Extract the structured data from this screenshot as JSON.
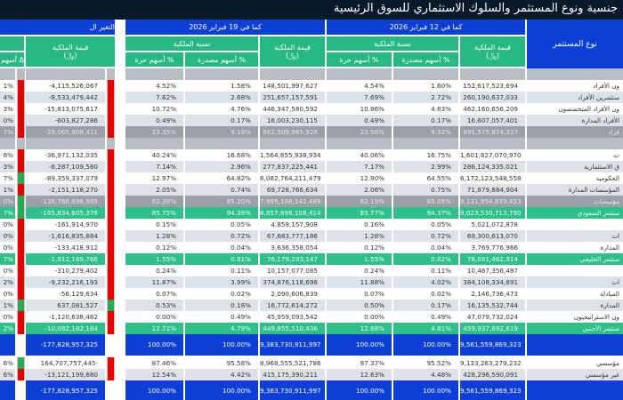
{
  "title": "جنسية ونوع المستثمر والسلوك الاستثماري للسوق الرئيسية",
  "headers": {
    "investor_type": "نوع المستثمر",
    "period_current": "كما في 12 فبراير 2026",
    "period_previous": "كما في 19 فبراير 2026",
    "change": "التغير ال",
    "ownership_value": "قيمة الملكية",
    "currency": "(﷼)",
    "ownership_pct": "نسبة الملكية",
    "pct_issued": "% أسهم مصدرة",
    "pct_free": "% أسهم حرة",
    "change_pct_free": "Δ أسهم"
  },
  "colors": {
    "header_blue": "#0d3fd6",
    "header_green": "#27b983",
    "subtotal_gray": "#9aa0a6",
    "total_green": "#2fc08a",
    "negative_flag": "#e30000",
    "positive_flag": "#1fae55",
    "title_bar": "#081a2a"
  },
  "rows": [
    {
      "style": "blank",
      "label": "",
      "feb12_value": "",
      "feb12_issued": "",
      "feb12_free": "",
      "feb19_value": "",
      "feb19_issued": "",
      "feb19_free": "",
      "change_value": "",
      "change_pct": "",
      "flag": ""
    },
    {
      "style": "white",
      "label": "ون الأفراد",
      "feb12_value": "152,617,523,694",
      "feb12_issued": "1.60%",
      "feb12_free": "4.54%",
      "feb19_value": "148,501,997,627",
      "feb19_issued": "1.58%",
      "feb19_free": "4.52%",
      "change_value": "-4,115,526,067",
      "change_pct": "1%",
      "flag": "red"
    },
    {
      "style": "light",
      "label": "ستثمرين الأفراد",
      "feb12_value": "260,190,637,033",
      "feb12_issued": "2.72%",
      "feb12_free": "7.69%",
      "feb19_value": "251,657,157,591",
      "feb19_issued": "2.68%",
      "feb19_free": "7.62%",
      "change_value": "-8,533,479,442",
      "change_pct": "4%",
      "flag": "red"
    },
    {
      "style": "white",
      "label": "ون الأفراد المتخصصون",
      "feb12_value": "462,160,656,209",
      "feb12_issued": "4.83%",
      "feb12_free": "10.86%",
      "feb19_value": "446,347,580,592",
      "feb19_issued": "4.76%",
      "feb19_free": "10.72%",
      "change_value": "-15,813,075,617",
      "change_pct": "3%",
      "flag": "red"
    },
    {
      "style": "light",
      "label": "الأفراد المدارة",
      "feb12_value": "16,607,057,401",
      "feb12_issued": "0.17%",
      "feb12_free": "0.49%",
      "feb19_value": "16,003,230,115",
      "feb19_issued": "0.17%",
      "feb19_free": "0.49%",
      "change_value": "-603,827,286",
      "change_pct": "0%",
      "flag": "red"
    },
    {
      "style": "gray",
      "label": "فراد",
      "feb12_value": "891,575,874,337",
      "feb12_issued": "9.32%",
      "feb12_free": "23.58%",
      "feb19_value": "862,509,965,926",
      "feb19_issued": "9.19%",
      "feb19_free": "23.35%",
      "change_value": "-29,065,908,411",
      "change_pct": "7%",
      "flag": "red"
    },
    {
      "style": "blank",
      "label": "",
      "feb12_value": "",
      "feb12_issued": "",
      "feb12_free": "",
      "feb19_value": "",
      "feb19_issued": "",
      "feb19_free": "",
      "change_value": "",
      "change_pct": "",
      "flag": ""
    },
    {
      "style": "white",
      "label": "ت",
      "feb12_value": "1,601,827,070,970",
      "feb12_issued": "16.75%",
      "feb12_free": "40.06%",
      "feb19_value": "1,564,855,938,934",
      "feb19_issued": "16.68%",
      "feb19_free": "40.24%",
      "change_value": "-36,971,132,035",
      "change_pct": "8%",
      "flag": "red"
    },
    {
      "style": "light",
      "label": "ق الاستثمارية",
      "feb12_value": "286,124,335,021",
      "feb12_issued": "2.99%",
      "feb12_free": "7.17%",
      "feb19_value": "277,837,225,441",
      "feb19_issued": "2.96%",
      "feb19_free": "7.14%",
      "change_value": "-8,287,109,580",
      "change_pct": "3%",
      "flag": "red"
    },
    {
      "style": "white",
      "label": "الحكومية",
      "feb12_value": "6,172,123,548,558",
      "feb12_issued": "64.55%",
      "feb12_free": "12.90%",
      "feb19_value": "6,082,764,211,479",
      "feb19_issued": "64.82%",
      "feb19_free": "12.97%",
      "change_value": "-89,359,337,079",
      "change_pct": "7%",
      "flag": "green"
    },
    {
      "style": "light",
      "label": "المؤسسات المدارة",
      "feb12_value": "71,879,884,904",
      "feb12_issued": "0.75%",
      "feb12_free": "2.06%",
      "feb19_value": "69,728,766,634",
      "feb19_issued": "0.74%",
      "feb19_free": "2.05%",
      "change_value": "-2,151,118,270",
      "change_pct": "1%",
      "flag": "red"
    },
    {
      "style": "gray",
      "label": "مؤسسات",
      "feb12_value": "8,131,954,839,453",
      "feb12_issued": "85.05%",
      "feb12_free": "62.19%",
      "feb19_value": "7,995,186,142,489",
      "feb19_issued": "85.20%",
      "feb19_free": "62.39%",
      "change_value": "-136,768,696,965",
      "change_pct": "0%",
      "flag": "green"
    },
    {
      "style": "green",
      "label": "ستثمر السعودي",
      "feb12_value": "9,023,530,713,790",
      "feb12_issued": "94.37%",
      "feb12_free": "85.77%",
      "feb19_value": "8,857,696,108,414",
      "feb19_issued": "94.39%",
      "feb19_free": "85.75%",
      "change_value": "-165,834,605,376",
      "change_pct": "7%",
      "flag": "green"
    },
    {
      "style": "white",
      "label": "",
      "feb12_value": "5,021,072,878",
      "feb12_issued": "0.05%",
      "feb12_free": "0.16%",
      "feb19_value": "4,859,157,908",
      "feb19_issued": "0.05%",
      "feb19_free": "0.15%",
      "change_value": "-161,914,970",
      "change_pct": "0%",
      "flag": "red"
    },
    {
      "style": "light",
      "label": "ات",
      "feb12_value": "69,300,613,070",
      "feb12_issued": "0.72%",
      "feb12_free": "1.28%",
      "feb19_value": "67,683,777,186",
      "feb19_issued": "0.72%",
      "feb19_free": "1.28%",
      "change_value": "-1,616,835,884",
      "change_pct": "0%",
      "flag": "red"
    },
    {
      "style": "white",
      "label": "المدارة",
      "feb12_value": "3,769,776,966",
      "feb12_issued": "0.04%",
      "feb12_free": "0.12%",
      "feb19_value": "3,636,358,054",
      "feb19_issued": "0.04%",
      "feb19_free": "0.12%",
      "change_value": "-133,418,912",
      "change_pct": "0%",
      "flag": "red"
    },
    {
      "style": "green",
      "label": "ستثمر الخليجي",
      "feb12_value": "78,091,462,914",
      "feb12_issued": "0.82%",
      "feb12_free": "1.55%",
      "feb19_value": "76,179,293,147",
      "feb19_issued": "0.81%",
      "feb19_free": "1.55%",
      "change_value": "-1,912,169,766",
      "change_pct": "7%",
      "flag": "red"
    },
    {
      "style": "white",
      "label": "",
      "feb12_value": "10,467,356,487",
      "feb12_issued": "0.11%",
      "feb12_free": "0.24%",
      "feb19_value": "10,157,077,085",
      "feb19_issued": "0.11%",
      "feb19_free": "0.24%",
      "change_value": "-310,279,402",
      "change_pct": "0%",
      "flag": "red"
    },
    {
      "style": "light",
      "label": "ات",
      "feb12_value": "384,108,334,891",
      "feb12_issued": "4.02%",
      "feb12_free": "11.88%",
      "feb19_value": "374,876,118,698",
      "feb19_issued": "3.99%",
      "feb19_free": "11.87%",
      "change_value": "-9,232,216,193",
      "change_pct": "2%",
      "flag": "red"
    },
    {
      "style": "white",
      "label": "المبادلة",
      "feb12_value": "2,146,736,473",
      "feb12_issued": "0.02%",
      "feb12_free": "0.07%",
      "feb19_value": "2,090,606,839",
      "feb19_issued": "0.02%",
      "feb19_free": "0.07%",
      "change_value": "-56,129,634",
      "change_pct": "0%",
      "flag": "red"
    },
    {
      "style": "light",
      "label": "المدارة",
      "feb12_value": "16,135,532,744",
      "feb12_issued": "0.17%",
      "feb12_free": "0.50%",
      "feb19_value": "16,772,614,272",
      "feb19_issued": "0.18%",
      "feb19_free": "0.53%",
      "change_value": "637,081,527",
      "change_pct": "1%",
      "flag": "green"
    },
    {
      "style": "white",
      "label": "ون الاستراتيجيون",
      "feb12_value": "47,079,732,024",
      "feb12_issued": "0.49%",
      "feb12_free": "0.00%",
      "feb19_value": "45,959,093,542",
      "feb19_issued": "0.49%",
      "feb19_free": "0.00%",
      "change_value": "-1,120,638,482",
      "change_pct": "0%",
      "flag": "red"
    },
    {
      "style": "green",
      "label": "ستثمر الأجنبي",
      "feb12_value": "459,937,692,619",
      "feb12_issued": "4.81%",
      "feb12_free": "12.68%",
      "feb19_value": "449,855,510,436",
      "feb19_issued": "4.79%",
      "feb19_free": "12.71%",
      "change_value": "-10,082,182,184",
      "change_pct": "2%",
      "flag": "red"
    },
    {
      "style": "blue",
      "label": "",
      "feb12_value": "9,561,559,869,323",
      "feb12_issued": "100.00%",
      "feb12_free": "100.00%",
      "feb19_value": "9,383,730,911,997",
      "feb19_issued": "100.00%",
      "feb19_free": "100.00%",
      "change_value": "-177,828,957,325",
      "change_pct": "",
      "flag": ""
    },
    {
      "style": "white",
      "label": "مؤسسي",
      "feb12_value": "9,133,263,279,232",
      "feb12_issued": "95.52%",
      "feb12_free": "87.37%",
      "feb19_value": "8,968,555,521,786",
      "feb19_issued": "95.58%",
      "feb19_free": "87.46%",
      "change_value": "164,707,757,445-",
      "change_pct": "6%",
      "flag": "green"
    },
    {
      "style": "light",
      "label": "غير مؤسسي",
      "feb12_value": "428,296,590,091",
      "feb12_issued": "4.48%",
      "feb12_free": "12.63%",
      "feb19_value": "415,175,390,211",
      "feb19_issued": "4.42%",
      "feb19_free": "12.54%",
      "change_value": "-13,121,199,880",
      "change_pct": "6%",
      "flag": "red"
    },
    {
      "style": "blue",
      "label": "",
      "feb12_value": "9,561,559,869,323",
      "feb12_issued": "100.00%",
      "feb12_free": "100.00%",
      "feb19_value": "9,383,730,911,997",
      "feb19_issued": "100.00%",
      "feb19_free": "100.00%",
      "change_value": "-177,828,957,325",
      "change_pct": "",
      "flag": ""
    }
  ]
}
